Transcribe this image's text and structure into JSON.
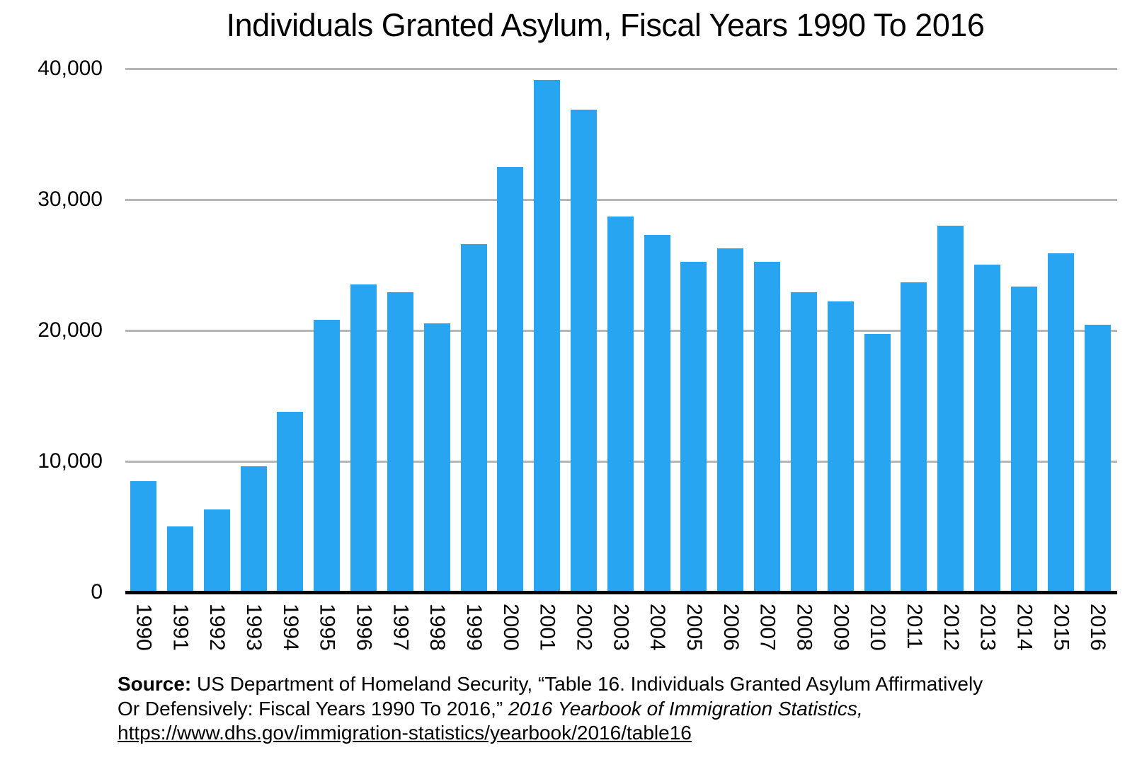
{
  "title": "Individuals Granted Asylum, Fiscal Years 1990 To 2016",
  "chart_data": {
    "type": "bar",
    "title": "Individuals Granted Asylum, Fiscal Years 1990 To 2016",
    "categories": [
      "1990",
      "1991",
      "1992",
      "1993",
      "1994",
      "1995",
      "1996",
      "1997",
      "1998",
      "1999",
      "2000",
      "2001",
      "2002",
      "2003",
      "2004",
      "2005",
      "2006",
      "2007",
      "2008",
      "2009",
      "2010",
      "2011",
      "2012",
      "2013",
      "2014",
      "2015",
      "2016"
    ],
    "values": [
      8472,
      5035,
      6307,
      9636,
      13813,
      20807,
      23513,
      22939,
      20541,
      26578,
      32513,
      39146,
      36894,
      28714,
      27321,
      25257,
      26263,
      25270,
      22930,
      22219,
      19730,
      23669,
      28026,
      25006,
      23374,
      25872,
      20455
    ],
    "xlabel": "",
    "ylabel": "",
    "ylim": [
      0,
      40000
    ],
    "yticks": [
      {
        "value": 40000,
        "label": "40,000"
      },
      {
        "value": 30000,
        "label": "30,000"
      },
      {
        "value": 20000,
        "label": "20,000"
      },
      {
        "value": 10000,
        "label": "10,000"
      },
      {
        "value": 0,
        "label": "0"
      }
    ],
    "grid": "horizontal-gray-lines",
    "legend": "none",
    "bar_color": "#28a5f0",
    "gridline_color": "#b5b5b5",
    "axis_line_color": "#000000"
  },
  "source": {
    "label": "Source:",
    "line1": " US Department of Homeland Security, “Table 16. Individuals Granted Asylum Affirmatively",
    "line2": "Or Defensively: Fiscal Years 1990 To 2016,”  ",
    "line2_italic": "2016 Yearbook of Immigration Statistics,",
    "link": "https://www.dhs.gov/immigration-statistics/yearbook/2016/table16"
  }
}
